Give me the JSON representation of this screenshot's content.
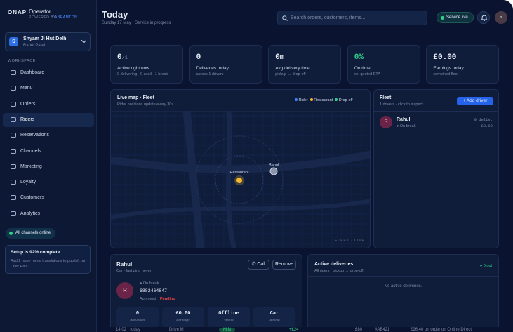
{
  "brand": {
    "name": "ONAP",
    "product": "Operator",
    "powered": "POWERED BY",
    "company": "ABRAMTON"
  },
  "store": {
    "initial": "S",
    "name": "Shyam Ji Hut Delhi",
    "owner": "Rahul Patel"
  },
  "nav": {
    "section": "WORKSPACE",
    "items": [
      "Dashboard",
      "Menu",
      "Orders",
      "Riders",
      "Reservations",
      "Channels",
      "Marketing",
      "Loyalty",
      "Customers",
      "Analytics"
    ]
  },
  "status": "All channels online",
  "setup": {
    "title": "Setup is 92% complete",
    "text": "Add 2 more menu translations to publish on Uber Eats."
  },
  "header": {
    "title": "Today",
    "subtitle": "Sunday 17 May · Service in progress",
    "search": "Search orders, customers, items...",
    "service": "Service live",
    "avatar": "R"
  },
  "stats": [
    {
      "value": "0",
      "suffix": "/1",
      "label": "Active right now",
      "note": "0 delivering · 0 avail · 1 break"
    },
    {
      "value": "0",
      "label": "Deliveries today",
      "note": "across 1 drivers"
    },
    {
      "value": "0m",
      "label": "Avg delivery time",
      "note": "pickup → drop-off"
    },
    {
      "value": "0%",
      "label": "On time",
      "note": "vs. quoted ETA"
    },
    {
      "value": "£0.00",
      "label": "Earnings today",
      "note": "combined fleet"
    }
  ],
  "map": {
    "title": "Live map · Fleet",
    "subtitle": "Rider positions update every 30s.",
    "legend": [
      "Rider",
      "Restaurant",
      "Drop-off"
    ],
    "restaurant": "Restaurant",
    "rider": "Rahul",
    "footer": "FLEET · LIVE"
  },
  "fleet": {
    "title": "Fleet",
    "subtitle": "1 drivers · click to inspect.",
    "button": "+ Add driver",
    "drivers": [
      {
        "initial": "R",
        "name": "Rahul",
        "status": "On break",
        "deliveries": "0 deliv.",
        "earnings": "£0.00"
      }
    ]
  },
  "driver": {
    "name": "Rahul",
    "subtitle": "Car · last ping never",
    "call": "Call",
    "remove": "Remove",
    "initial": "R",
    "status": "On break",
    "phone": "6882464847",
    "approved": "Approved",
    "pending": "Pending",
    "stats": [
      {
        "value": "0",
        "label": "deliveries"
      },
      {
        "value": "£0.00",
        "label": "earnings"
      },
      {
        "value": "Offline",
        "label": "status"
      },
      {
        "value": "Car",
        "label": "vehicle"
      }
    ]
  },
  "deliveries": {
    "title": "Active deliveries",
    "subtitle": "All riders · pickup → drop-off.",
    "badge": "0 out",
    "empty": "No active deliveries."
  },
  "ticker": [
    "14:02 · today",
    "Drive M",
    "MIN",
    "+£24",
    "£80",
    "#AB421",
    "£26.40 on order on Online Direct"
  ]
}
